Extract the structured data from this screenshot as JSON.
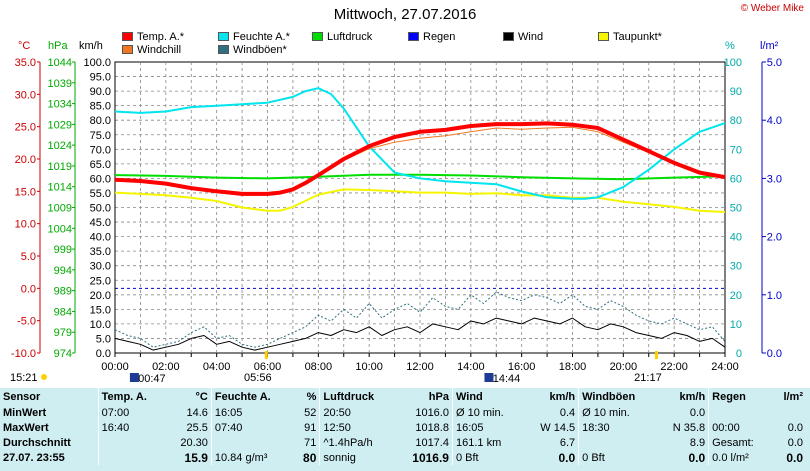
{
  "page_title": "Mittwoch, 27.07.2016",
  "copyright": "© Weber Mike",
  "legend": [
    {
      "label": "Temp. A.*",
      "color": "#ff0000"
    },
    {
      "label": "Feuchte A.*",
      "color": "#00e5ee"
    },
    {
      "label": "Luftdruck",
      "color": "#00dd00"
    },
    {
      "label": "Regen",
      "color": "#0000ff"
    },
    {
      "label": "Wind",
      "color": "#000000"
    },
    {
      "label": "Taupunkt*",
      "color": "#f5f500"
    },
    {
      "label": "Windchill",
      "color": "#f07820"
    },
    {
      "label": "Windböen*",
      "color": "#2f6f7f"
    }
  ],
  "units": {
    "temp": "°C",
    "press": "hPa",
    "wind": "km/h",
    "hum": "%",
    "rain": "l/m²"
  },
  "sun": {
    "rise": "05:56",
    "set": "21:17",
    "moon_rise": "00:47",
    "moon_set": "14:44",
    "left_time": "15:21"
  },
  "chart_data": {
    "type": "line",
    "x_unit": "hours",
    "x_ticks": [
      "00:00",
      "02:00",
      "04:00",
      "06:00",
      "08:00",
      "10:00",
      "12:00",
      "14:00",
      "16:00",
      "18:00",
      "20:00",
      "22:00",
      "24:00"
    ],
    "axes": {
      "temp": {
        "unit": "°C",
        "min": -10,
        "max": 35,
        "ticks": [
          "35.0",
          "30.0",
          "25.0",
          "20.0",
          "15.0",
          "10.0",
          "5.0",
          "0.0",
          "-5.0",
          "-10.0"
        ]
      },
      "pressure": {
        "unit": "hPa",
        "min": 974,
        "max": 1044,
        "ticks": [
          "1044",
          "1039",
          "1034",
          "1029",
          "1024",
          "1019",
          "1014",
          "1009",
          "1004",
          "999",
          "994",
          "989",
          "984",
          "979",
          "974"
        ]
      },
      "wind": {
        "unit": "km/h",
        "min": 0,
        "max": 100,
        "ticks": [
          "100.0",
          "95.0",
          "90.0",
          "85.0",
          "80.0",
          "75.0",
          "70.0",
          "65.0",
          "60.0",
          "55.0",
          "50.0",
          "45.0",
          "40.0",
          "35.0",
          "30.0",
          "25.0",
          "20.0",
          "15.0",
          "10.0",
          "5.0",
          "0.0"
        ]
      },
      "humidity": {
        "unit": "%",
        "min": 0,
        "max": 100,
        "ticks": [
          "100",
          "90",
          "80",
          "70",
          "60",
          "50",
          "40",
          "30",
          "20",
          "10",
          "0"
        ]
      },
      "rain": {
        "unit": "l/m²",
        "min": 0,
        "max": 5,
        "ticks": [
          "5.0",
          "4.0",
          "3.0",
          "2.0",
          "1.0",
          "0.0"
        ]
      }
    },
    "series": [
      {
        "name": "Temp. A.*",
        "axis": "temp",
        "color": "#ff0000",
        "width": 4,
        "x": [
          0,
          1,
          2,
          3,
          4,
          5,
          6,
          6.5,
          7,
          7.5,
          8,
          9,
          10,
          11,
          12,
          13,
          14,
          15,
          16,
          17,
          18,
          19,
          20,
          21,
          22,
          23,
          24
        ],
        "y": [
          16.8,
          16.6,
          16.2,
          15.5,
          15,
          14.6,
          14.6,
          14.8,
          15.3,
          16.3,
          17.5,
          20,
          22,
          23.4,
          24.2,
          24.5,
          25.1,
          25.4,
          25.4,
          25.5,
          25.3,
          24.8,
          23,
          21.2,
          19.4,
          17.9,
          17.2
        ]
      },
      {
        "name": "Windchill",
        "axis": "temp",
        "color": "#f07820",
        "width": 1,
        "x": [
          0,
          1,
          2,
          3,
          4,
          5,
          6,
          6.5,
          7,
          7.5,
          8,
          9,
          10,
          11,
          12,
          13,
          14,
          15,
          16,
          17,
          18,
          19,
          20,
          21,
          22,
          23,
          24
        ],
        "y": [
          16.6,
          16.4,
          16.0,
          15.3,
          14.8,
          14.4,
          14.4,
          14.6,
          15.1,
          16.1,
          17.3,
          19.8,
          21.6,
          22.6,
          23.2,
          23.6,
          24.2,
          24.8,
          24.6,
          24.8,
          24.9,
          24.2,
          22.6,
          21,
          19.2,
          17.7,
          17
        ]
      },
      {
        "name": "Feuchte A.*",
        "axis": "humidity",
        "color": "#00e5ee",
        "width": 2,
        "x": [
          0,
          1,
          2,
          3,
          4,
          5,
          6,
          7,
          7.5,
          8,
          8.5,
          9,
          10,
          11,
          12,
          13,
          14,
          15,
          16,
          17,
          18,
          18.5,
          19,
          20,
          21,
          22,
          23,
          24
        ],
        "y": [
          83,
          82.5,
          83,
          84.5,
          85,
          85.5,
          86,
          88,
          90,
          91,
          89,
          84,
          71,
          62,
          60,
          59,
          58.5,
          58,
          55.5,
          53.5,
          53,
          53,
          53.5,
          57,
          63,
          70,
          76,
          79
        ]
      },
      {
        "name": "Luftdruck",
        "axis": "pressure",
        "color": "#00dd00",
        "width": 2,
        "x": [
          0,
          2,
          4,
          6,
          8,
          10,
          12,
          14,
          16,
          18,
          20,
          22,
          24
        ],
        "y": [
          1016.8,
          1016.6,
          1016.2,
          1016,
          1016.4,
          1016.9,
          1016.9,
          1016.7,
          1016.3,
          1016,
          1015.8,
          1016.2,
          1016.5
        ]
      },
      {
        "name": "Taupunkt*",
        "axis": "temp",
        "color": "#f5f500",
        "width": 2,
        "x": [
          0,
          1,
          2,
          3,
          4,
          5,
          6,
          6.5,
          7,
          8,
          9,
          10,
          11,
          12,
          13,
          14,
          15,
          16,
          17,
          18,
          19,
          20,
          21,
          22,
          23,
          24
        ],
        "y": [
          14.8,
          14.6,
          14.4,
          14,
          13.5,
          12.5,
          12,
          12,
          12.6,
          14.5,
          15.3,
          15.2,
          15.0,
          14.8,
          14.8,
          14.6,
          14.7,
          14.4,
          14.4,
          14,
          14,
          13.4,
          13.0,
          12.6,
          12.0,
          11.8
        ]
      },
      {
        "name": "Wind",
        "axis": "wind",
        "color": "#000000",
        "width": 1,
        "x": [
          0,
          0.5,
          1,
          1.5,
          2,
          2.5,
          3,
          3.5,
          4,
          4.5,
          5,
          5.5,
          6,
          6.5,
          7,
          7.5,
          8,
          8.5,
          9,
          9.5,
          10,
          10.5,
          11,
          11.5,
          12,
          12.5,
          13,
          13.5,
          14,
          14.5,
          15,
          15.5,
          16,
          16.5,
          17,
          17.5,
          18,
          18.5,
          19,
          19.5,
          20,
          20.5,
          21,
          21.5,
          22,
          22.5,
          23,
          23.5,
          24
        ],
        "y": [
          5,
          4,
          3,
          1,
          2,
          3,
          5,
          6,
          3,
          4,
          2,
          1,
          2,
          3,
          4,
          5,
          7,
          6,
          8,
          7,
          9,
          6,
          8,
          9,
          7,
          10,
          9,
          8,
          11,
          10,
          12,
          11,
          10,
          12,
          11,
          10,
          12,
          9,
          8,
          10,
          9,
          7,
          6,
          5,
          7,
          6,
          4,
          5,
          2
        ]
      },
      {
        "name": "Windböen*",
        "axis": "wind",
        "color": "#2f6f7f",
        "width": 1,
        "dash": "2,2",
        "x": [
          0,
          0.5,
          1,
          1.5,
          2,
          2.5,
          3,
          3.5,
          4,
          4.5,
          5,
          5.5,
          6,
          6.5,
          7,
          7.5,
          8,
          8.5,
          9,
          9.5,
          10,
          10.5,
          11,
          11.5,
          12,
          12.5,
          13,
          13.5,
          14,
          14.5,
          15,
          15.5,
          16,
          16.5,
          17,
          17.5,
          18,
          18.5,
          19,
          19.5,
          20,
          20.5,
          21,
          21.5,
          22,
          22.5,
          23,
          23.5,
          24
        ],
        "y": [
          8,
          6,
          5,
          2,
          3,
          4,
          7,
          9,
          5,
          6,
          3,
          2,
          3,
          5,
          7,
          9,
          13,
          11,
          15,
          12,
          17,
          12,
          15,
          17,
          14,
          19,
          16,
          15,
          20,
          17,
          21,
          19,
          18,
          20,
          19,
          17,
          20,
          16,
          15,
          18,
          16,
          13,
          11,
          10,
          12,
          10,
          8,
          9,
          4
        ]
      }
    ],
    "grid": true
  },
  "stats": {
    "headers": [
      "Sensor",
      "Temp. A.",
      "°C",
      "Feuchte A.",
      "%",
      "Luftdruck",
      "hPa",
      "Wind",
      "km/h",
      "Windböen",
      "km/h",
      "Regen",
      "l/m²"
    ],
    "rows": [
      [
        "MinWert",
        "07:00",
        "14.6",
        "16:05",
        "52",
        "20:50",
        "1016.0",
        "Ø 10 min.",
        "0.4",
        "Ø 10 min.",
        "0.0",
        "",
        ""
      ],
      [
        "MaxWert",
        "16:40",
        "25.5",
        "07:40",
        "91",
        "12:50",
        "1018.8",
        "16:05",
        "W 14.5",
        "18:30",
        "N 35.8",
        "00:00",
        "0.0"
      ],
      [
        "Durchschnitt",
        "",
        "20.30",
        "",
        "71",
        "^1.4hPa/h",
        "1017.4",
        "161.1 km",
        "6.7",
        "",
        "8.9",
        "Gesamt:",
        "0.0"
      ],
      [
        "27.07. 23:55",
        "",
        "15.9",
        "10.84 g/m³",
        "80",
        "sonnig",
        "1016.9",
        "0 Bft",
        "0.0",
        "0 Bft",
        "0.0",
        "0.0 l/m²",
        "0.0"
      ]
    ]
  }
}
